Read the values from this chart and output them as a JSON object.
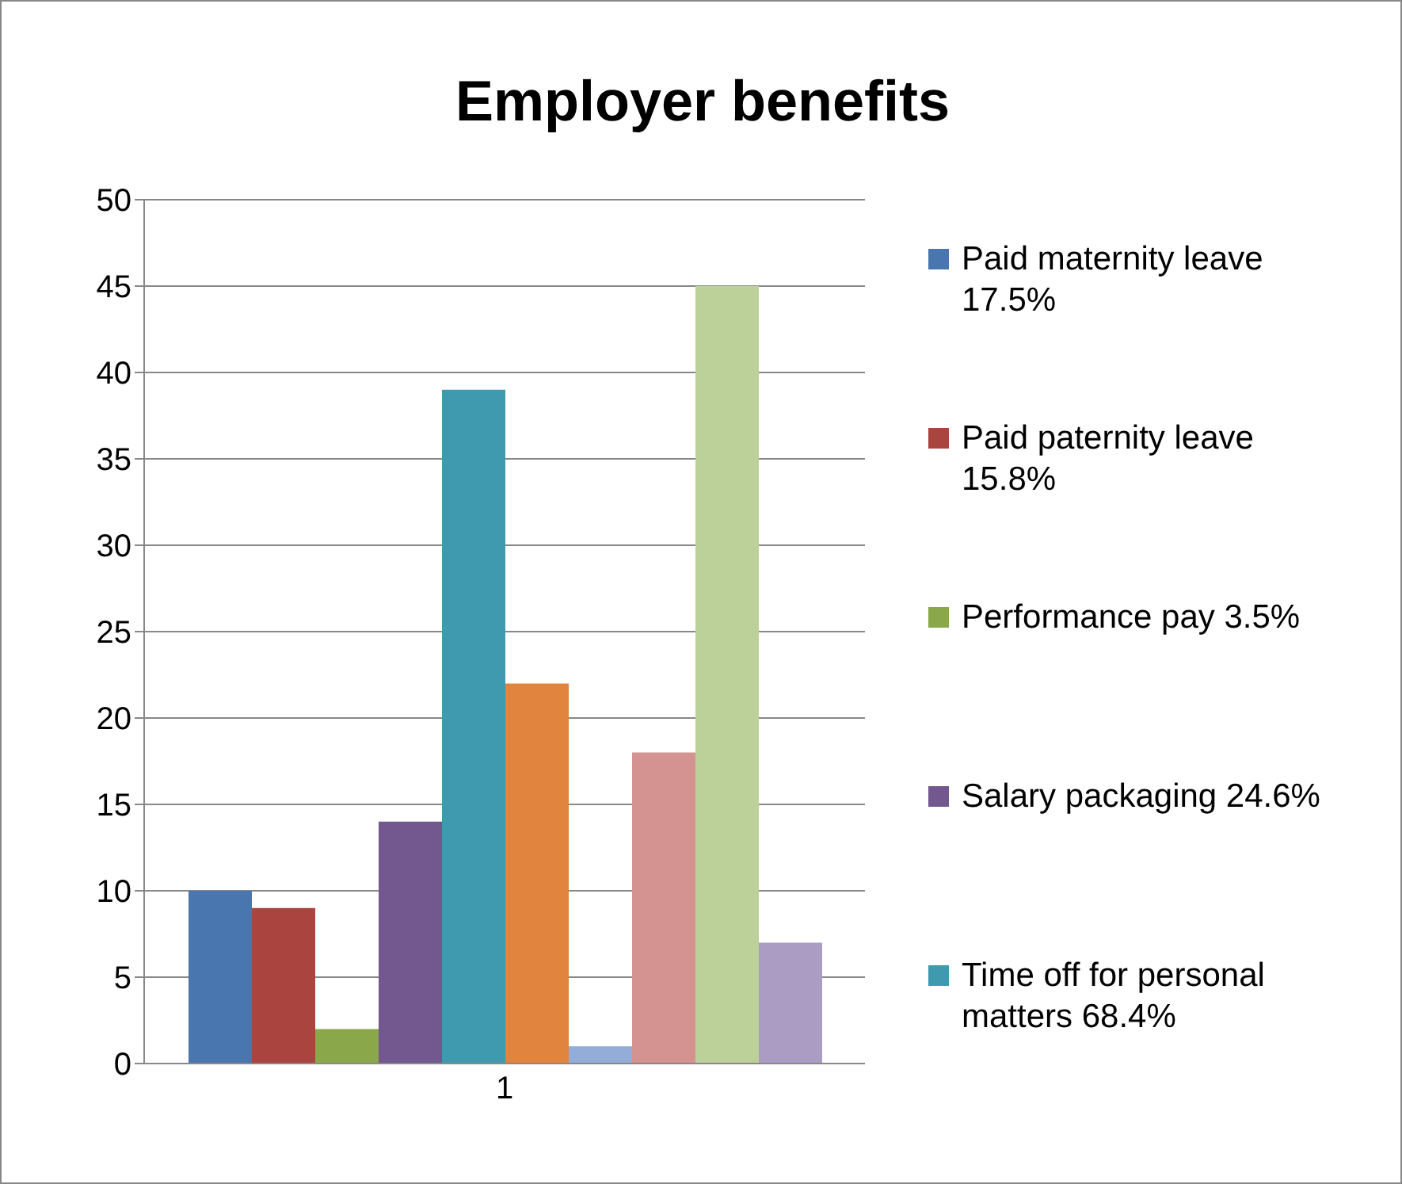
{
  "chart_data": {
    "type": "bar",
    "title": "Employer benefits",
    "categories": [
      "1"
    ],
    "series": [
      {
        "name": "Paid maternity leave 17.5%",
        "color": "#4a76b0",
        "values": [
          10
        ]
      },
      {
        "name": "Paid paternity leave 15.8%",
        "color": "#a9443f",
        "values": [
          9
        ]
      },
      {
        "name": "Performance pay  3.5%",
        "color": "#8aa84a",
        "values": [
          2
        ]
      },
      {
        "name": "Salary packaging 24.6%",
        "color": "#72588e",
        "values": [
          14
        ]
      },
      {
        "name": "Time off for personal matters 68.4%",
        "color": "#3f9ab0",
        "values": [
          39
        ]
      },
      {
        "color": "#e0843e",
        "values": [
          22
        ]
      },
      {
        "color": "#93add8",
        "values": [
          1
        ]
      },
      {
        "color": "#d49290",
        "values": [
          18
        ]
      },
      {
        "color": "#bcd19a",
        "values": [
          45
        ]
      },
      {
        "color": "#ab9cc4",
        "values": [
          7
        ]
      }
    ],
    "ylim": [
      0,
      50
    ],
    "yticks": [
      0,
      5,
      10,
      15,
      20,
      25,
      30,
      35,
      40,
      45,
      50
    ],
    "grid": "y",
    "legend": "right"
  }
}
